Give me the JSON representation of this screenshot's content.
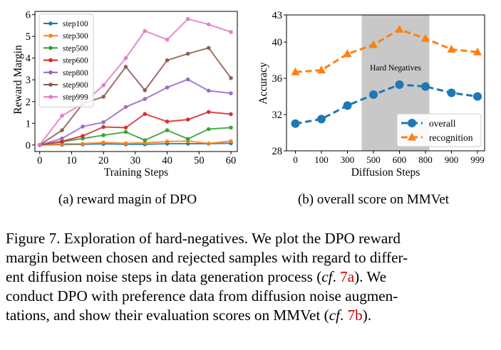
{
  "chart_data": [
    {
      "type": "line",
      "title": "",
      "xlabel": "Training Steps",
      "ylabel": "Reward Margin",
      "xlim": [
        -1.5,
        62
      ],
      "ylim": [
        -0.3,
        6.15
      ],
      "xticks": [
        0,
        10,
        20,
        30,
        40,
        50,
        60
      ],
      "yticks": [
        0,
        1,
        2,
        3,
        4,
        5,
        6
      ],
      "legend_position": "top-left",
      "x": [
        0,
        7,
        13.5,
        20,
        27,
        33,
        40,
        46.5,
        53,
        60
      ],
      "series": [
        {
          "name": "step100",
          "color": "#1f77b4",
          "values": [
            0,
            0.02,
            0.03,
            0.05,
            0.03,
            0.03,
            0.06,
            0.06,
            0.06,
            0.08
          ]
        },
        {
          "name": "step300",
          "color": "#ff7f0e",
          "values": [
            0,
            0.05,
            0.06,
            0.12,
            0.08,
            0.1,
            0.16,
            0.18,
            0.07,
            0.18
          ]
        },
        {
          "name": "step500",
          "color": "#2ca02c",
          "values": [
            0,
            0.15,
            0.3,
            0.45,
            0.6,
            0.22,
            0.68,
            0.28,
            0.73,
            0.8
          ]
        },
        {
          "name": "step600",
          "color": "#d62728",
          "values": [
            0,
            0.17,
            0.42,
            0.83,
            0.8,
            1.43,
            1.08,
            1.17,
            1.52,
            1.42
          ]
        },
        {
          "name": "step800",
          "color": "#9467bd",
          "values": [
            0,
            0.3,
            0.85,
            1.05,
            1.75,
            2.12,
            2.65,
            3.02,
            2.5,
            2.38
          ]
        },
        {
          "name": "step900",
          "color": "#8c564b",
          "values": [
            0,
            0.68,
            1.9,
            2.22,
            3.6,
            2.52,
            3.9,
            4.2,
            4.47,
            3.08
          ]
        },
        {
          "name": "step999",
          "color": "#e377c2",
          "values": [
            0,
            1.35,
            1.9,
            2.75,
            4.0,
            5.25,
            4.85,
            5.8,
            5.55,
            5.2
          ]
        }
      ],
      "subtitle": "(a) reward magin of DPO"
    },
    {
      "type": "line",
      "title": "",
      "xlabel": "Diffusion Steps",
      "ylabel": "Accuracy",
      "ylim": [
        28,
        43
      ],
      "yticks": [
        28,
        32,
        36,
        40,
        43
      ],
      "categories": [
        "0",
        "100",
        "300",
        "500",
        "600",
        "800",
        "900",
        "999"
      ],
      "legend_position": "lower-right",
      "shaded_region": {
        "from": "500",
        "to": "800",
        "label": "Hard Negatives"
      },
      "series": [
        {
          "name": "overall",
          "color": "#1f77b4",
          "marker": "circle",
          "values": [
            31.0,
            31.5,
            33.0,
            34.2,
            35.3,
            35.1,
            34.4,
            34.0
          ]
        },
        {
          "name": "recognition",
          "color": "#ff7f0e",
          "marker": "triangle",
          "values": [
            36.7,
            36.9,
            38.7,
            39.7,
            41.4,
            40.4,
            39.2,
            38.9
          ]
        }
      ],
      "subtitle": "(b) overall score on MMVet"
    }
  ],
  "caption": {
    "line1": "Figure 7. Exploration of hard-negatives. We plot the DPO reward",
    "line2": "margin between chosen and rejected samples with regard to differ-",
    "line3_pre": "ent diffusion noise steps in data generation process (",
    "cf": "cf",
    "dot": ". ",
    "ref_a": "7a",
    "line3_post": "). We",
    "line4": "conduct DPO with preference data from diffusion noise augmen-",
    "line5_pre": "tations, and show their evaluation scores on MMVet (",
    "ref_b": "7b",
    "line5_post": ")."
  }
}
